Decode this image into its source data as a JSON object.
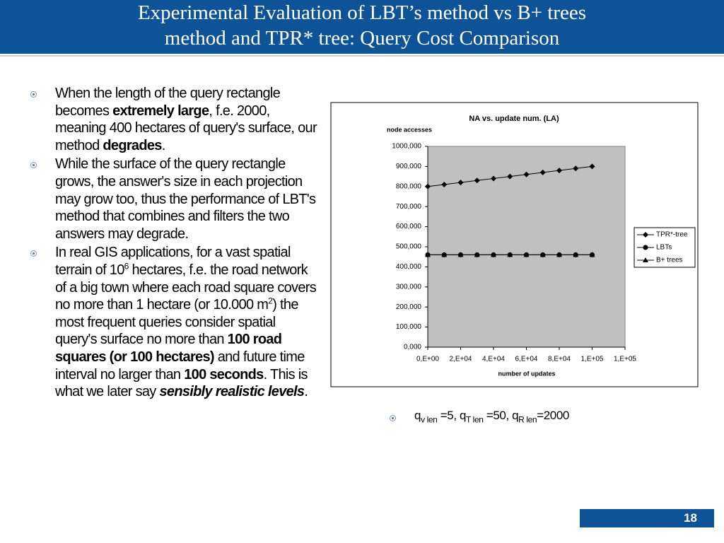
{
  "title": [
    "Experimental Evaluation of LBT’s method vs B+ trees",
    "method and TPR* tree: Query Cost Comparison"
  ],
  "bullets": [
    [
      {
        "text": "When the length of the query rectangle becomes "
      },
      {
        "text": "extremely large",
        "style": "b"
      },
      {
        "text": ", f.e. 2000, meaning 400 hectares of query's surface, our method "
      },
      {
        "text": "degrades",
        "style": "b"
      },
      {
        "text": "."
      }
    ],
    [
      {
        "text": "While the surface of the query rectangle grows, the answer's size in each projection may grow too, thus the performance of LBT's method that combines and filters the two answers may degrade."
      }
    ],
    [
      {
        "text": "In real GIS applications, for a vast spatial terrain of 10"
      },
      {
        "text": "6",
        "style": "sup"
      },
      {
        "text": " hectares, f.e. the road network of a big town where each road square covers no more than 1 hectare (or 10.000 m"
      },
      {
        "text": "2",
        "style": "sup"
      },
      {
        "text": ") the most frequent queries consider spatial query's surface no more than "
      },
      {
        "text": "100 road squares (or 100 hectares)",
        "style": "b"
      },
      {
        "text": " and future time interval no larger than "
      },
      {
        "text": "100 seconds",
        "style": "b"
      },
      {
        "text": ". This is what we later say "
      },
      {
        "text": "sensibly realistic levels",
        "style": "bi"
      },
      {
        "text": "."
      }
    ]
  ],
  "note": [
    {
      "text": "q"
    },
    {
      "text": "v len",
      "style": "sub"
    },
    {
      "text": " =5, q"
    },
    {
      "text": "T len",
      "style": "sub"
    },
    {
      "text": " =50, q"
    },
    {
      "text": "R len",
      "style": "sub"
    },
    {
      "text": "=2000"
    }
  ],
  "page_number": "18",
  "chart_data": {
    "type": "line",
    "title": "NA vs. update num. (LA)",
    "ylabel": "node accesses",
    "xlabel": "number of updates",
    "x": [
      0,
      10000,
      20000,
      30000,
      40000,
      50000,
      60000,
      70000,
      80000,
      90000,
      100000
    ],
    "series": [
      {
        "name": "TPR*-tree",
        "color": "#000000",
        "marker": "diamond",
        "values": [
          800000,
          810000,
          820000,
          830000,
          840000,
          850000,
          860000,
          870000,
          880000,
          890000,
          900000
        ]
      },
      {
        "name": "LBTs",
        "color": "#000000",
        "marker": "circle",
        "values": [
          460000,
          460000,
          460000,
          460000,
          460000,
          460000,
          460000,
          460000,
          460000,
          460000,
          460000
        ]
      },
      {
        "name": "B+ trees",
        "color": "#000000",
        "marker": "triangle",
        "values": [
          460000,
          460000,
          460000,
          460000,
          460000,
          460000,
          460000,
          460000,
          460000,
          460000,
          460000
        ]
      }
    ],
    "xlim": [
      0,
      120000
    ],
    "xticks": [
      {
        "value": 0,
        "label": "0,E+00"
      },
      {
        "value": 20000,
        "label": "2,E+04"
      },
      {
        "value": 40000,
        "label": "4,E+04"
      },
      {
        "value": 60000,
        "label": "6,E+04"
      },
      {
        "value": 80000,
        "label": "8,E+04"
      },
      {
        "value": 100000,
        "label": "1,E+05"
      },
      {
        "value": 120000,
        "label": "1,E+05"
      }
    ],
    "ylim": [
      0,
      1000000
    ],
    "yticks": [
      {
        "value": 0,
        "label": "0,000"
      },
      {
        "value": 100000,
        "label": "100,000"
      },
      {
        "value": 200000,
        "label": "200,000"
      },
      {
        "value": 300000,
        "label": "300,000"
      },
      {
        "value": 400000,
        "label": "400,000"
      },
      {
        "value": 500000,
        "label": "500,000"
      },
      {
        "value": 600000,
        "label": "600,000"
      },
      {
        "value": 700000,
        "label": "700,000"
      },
      {
        "value": 800000,
        "label": "800,000"
      },
      {
        "value": 900000,
        "label": "900,000"
      },
      {
        "value": 1000000,
        "label": "1000,000"
      }
    ],
    "plot_background": "#c0c0c0",
    "legend": "right"
  }
}
